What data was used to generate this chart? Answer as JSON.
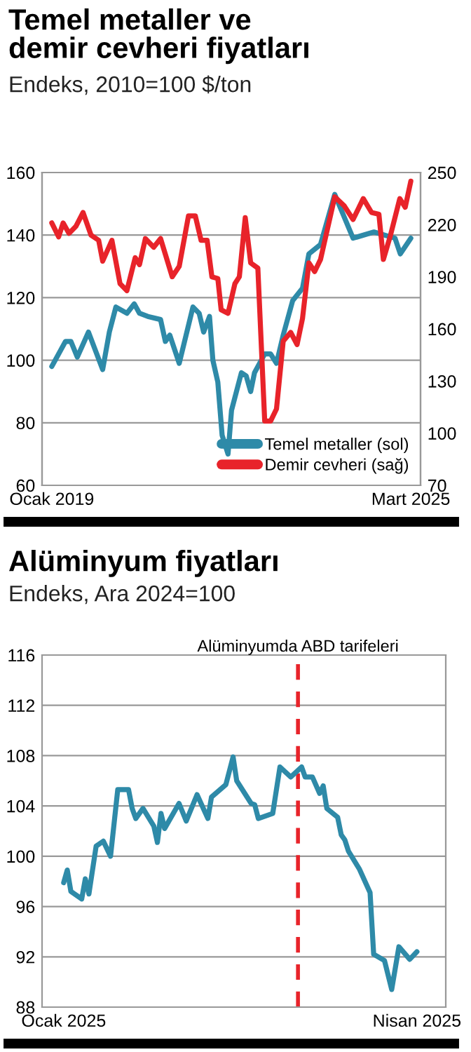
{
  "chart_data": [
    {
      "type": "line",
      "title": "Temel metaller ve\ndemir cevheri fiyatları",
      "subtitle": "Endeks, 2010=100 $/ton",
      "xlim": [
        "2018-11-01",
        "2025-05-01"
      ],
      "xticks": [
        {
          "value": "2019-01",
          "label": "Ocak 2019"
        },
        {
          "value": "2025-03",
          "label": "Mart 2025"
        }
      ],
      "ylim": [
        60,
        160
      ],
      "yticks": [
        60,
        80,
        100,
        120,
        140,
        160
      ],
      "y2lim": [
        70,
        250
      ],
      "y2ticks": [
        70,
        100,
        130,
        160,
        190,
        220,
        250
      ],
      "grid": "y",
      "legend": "bottom right",
      "series": [
        {
          "name": "Temel metaller (sol)",
          "color": "#2e8aa8",
          "x": [
            "2019-01-01",
            "2019-03-28",
            "2019-05-01",
            "2019-06-10",
            "2019-08-19",
            "2019-11-16",
            "2019-12-28",
            "2020-02-07",
            "2020-04-16",
            "2020-06-01",
            "2020-07-04",
            "2020-08-25",
            "2020-11-13",
            "2020-12-13",
            "2021-01-10",
            "2021-03-10",
            "2021-06-04",
            "2021-07-13",
            "2021-08-10",
            "2021-09-16",
            "2021-10-07",
            "2021-11-07",
            "2021-12-04",
            "2022-01-10",
            "2022-02-01",
            "2022-04-04",
            "2022-05-04",
            "2022-06-01",
            "2022-06-25",
            "2022-08-28",
            "2022-10-04",
            "2022-11-10",
            "2022-12-22",
            "2023-02-19",
            "2023-04-22",
            "2023-06-01",
            "2023-08-13",
            "2023-11-10",
            "2024-03-04",
            "2024-07-13",
            "2024-11-22",
            "2024-12-25",
            "2025-03-01"
          ],
          "values": [
            98,
            106,
            106,
            101,
            109,
            97,
            109,
            117,
            115,
            118,
            115,
            114,
            113,
            106,
            108,
            99,
            117,
            115,
            109,
            114,
            100,
            93,
            76,
            70,
            84,
            96,
            95,
            90,
            96,
            102,
            102,
            99,
            108,
            119,
            123,
            134,
            137,
            153,
            139,
            141,
            139,
            134,
            139
          ]
        },
        {
          "name": "Demir cevheri (sağ)",
          "color": "#e8232a",
          "axis": "y2",
          "x": [
            "2019-01-01",
            "2019-02-13",
            "2019-03-13",
            "2019-04-19",
            "2019-06-01",
            "2019-07-16",
            "2019-09-04",
            "2019-10-22",
            "2019-11-16",
            "2020-01-13",
            "2020-03-04",
            "2020-04-16",
            "2020-06-07",
            "2020-07-04",
            "2020-08-10",
            "2020-10-01",
            "2020-11-13",
            "2021-01-25",
            "2021-03-10",
            "2021-05-07",
            "2021-06-19",
            "2021-07-25",
            "2021-09-01",
            "2021-10-01",
            "2021-11-07",
            "2021-11-28",
            "2022-01-10",
            "2022-02-22",
            "2022-03-22",
            "2022-04-28",
            "2022-06-01",
            "2022-07-16",
            "2022-08-28",
            "2022-10-04",
            "2022-11-10",
            "2022-12-22",
            "2023-02-07",
            "2023-03-19",
            "2023-04-22",
            "2023-06-01",
            "2023-07-07",
            "2023-08-13",
            "2023-11-10",
            "2024-01-07",
            "2024-03-04",
            "2024-05-07",
            "2024-06-28",
            "2024-08-13",
            "2024-09-10",
            "2024-10-25",
            "2024-12-22",
            "2025-01-25",
            "2025-03-01"
          ],
          "values": [
            221,
            213,
            221,
            215,
            219,
            227,
            214,
            211,
            199,
            211,
            186,
            182,
            201,
            197,
            212,
            207,
            212,
            190,
            196,
            225,
            225,
            211,
            211,
            190,
            189,
            171,
            169,
            186,
            190,
            224,
            198,
            195,
            107,
            107,
            114,
            153,
            158,
            151,
            166,
            198,
            193,
            200,
            236,
            231,
            223,
            235,
            227,
            226,
            200,
            214,
            235,
            230,
            245
          ]
        }
      ]
    },
    {
      "type": "line",
      "title": "Alüminyum fiyatları",
      "subtitle": "Endeks, Ara 2024=100",
      "xlim": [
        "2024-12-27",
        "2025-04-18"
      ],
      "xticks": [
        {
          "value": "2025-01-02",
          "label": "Ocak 2025"
        },
        {
          "value": "2025-04-10",
          "label": "Nisan 2025"
        }
      ],
      "ylim": [
        88,
        116
      ],
      "yticks": [
        88,
        92,
        96,
        100,
        104,
        108,
        112,
        116
      ],
      "grid": "y",
      "ref_lines": [
        {
          "axis": "x",
          "value": "2025-03-08",
          "label": "Alüminyumda ABD tarifeleri",
          "color": "#e8232a",
          "line_style": "dashed"
        }
      ],
      "series": [
        {
          "color": "#2e8aa8",
          "x": [
            "2025-01-02",
            "2025-01-03",
            "2025-01-04",
            "2025-01-07",
            "2025-01-08",
            "2025-01-09",
            "2025-01-11",
            "2025-01-13",
            "2025-01-15",
            "2025-01-17",
            "2025-01-20",
            "2025-01-21",
            "2025-01-22",
            "2025-01-24",
            "2025-01-27",
            "2025-01-28",
            "2025-01-29",
            "2025-01-30",
            "2025-02-03",
            "2025-02-05",
            "2025-02-08",
            "2025-02-11",
            "2025-02-12",
            "2025-02-16",
            "2025-02-18",
            "2025-02-19",
            "2025-02-23",
            "2025-02-24",
            "2025-02-25",
            "2025-03-01",
            "2025-03-03",
            "2025-03-06",
            "2025-03-09",
            "2025-03-10",
            "2025-03-12",
            "2025-03-14",
            "2025-03-15",
            "2025-03-16",
            "2025-03-19",
            "2025-03-20",
            "2025-03-21",
            "2025-03-22",
            "2025-03-25",
            "2025-03-28",
            "2025-03-29",
            "2025-04-01",
            "2025-04-03",
            "2025-04-05",
            "2025-04-08",
            "2025-04-10"
          ],
          "values": [
            97.9,
            98.9,
            97.2,
            96.6,
            98.2,
            97,
            100.8,
            101.2,
            100,
            105.3,
            105.3,
            103.8,
            103,
            103.8,
            102.4,
            101.1,
            103.4,
            102.2,
            104.2,
            102.8,
            104.9,
            103,
            104.7,
            105.7,
            107.9,
            106,
            104.2,
            104.1,
            103,
            103.4,
            107.1,
            106.3,
            107.1,
            106.3,
            106.3,
            105,
            105.6,
            103.8,
            103.1,
            101.7,
            101.3,
            100.4,
            99,
            97.1,
            92.2,
            91.7,
            89.4,
            92.8,
            91.8,
            92.4
          ]
        }
      ]
    }
  ]
}
